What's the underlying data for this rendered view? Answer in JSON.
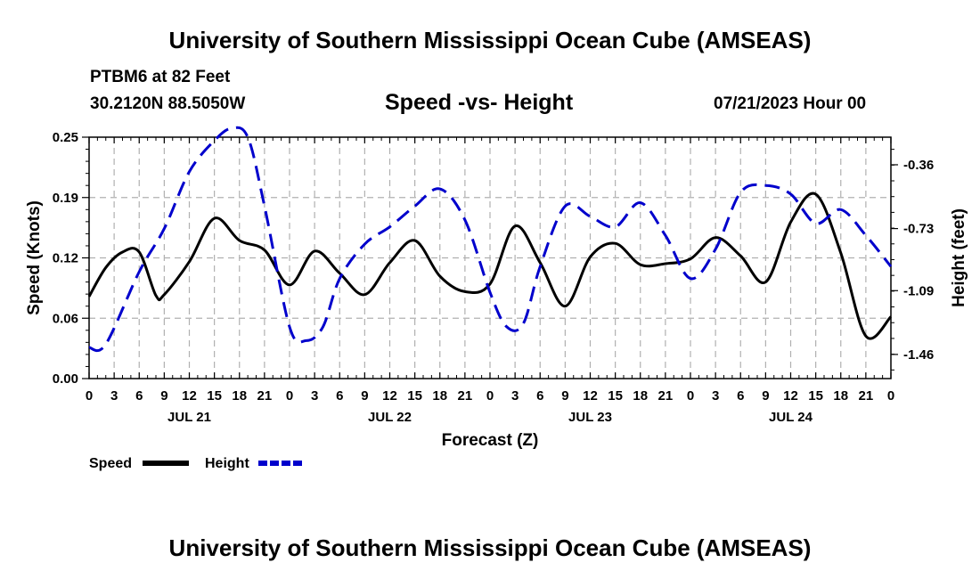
{
  "header": {
    "title_top": "University of Southern Mississippi Ocean Cube (AMSEAS)",
    "title_bottom": "University of Southern Mississippi Ocean Cube (AMSEAS)",
    "station": "PTBM6 at 82 Feet",
    "coords": "30.2120N  88.5050W",
    "datetime": "07/21/2023 Hour 00"
  },
  "chart_data": {
    "type": "line",
    "title": "Speed -vs- Height",
    "xlabel": "Forecast (Z)",
    "ylabel": "Speed (Knots)",
    "y2label": "Height (feet)",
    "x_hours_range": [
      0,
      96
    ],
    "x_tick_every_hours": 3,
    "x_tick_labels": [
      "0",
      "3",
      "6",
      "9",
      "12",
      "15",
      "18",
      "21",
      "0",
      "3",
      "6",
      "9",
      "12",
      "15",
      "18",
      "21",
      "0",
      "3",
      "6",
      "9",
      "12",
      "15",
      "18",
      "21",
      "0",
      "3",
      "6",
      "9",
      "12",
      "15",
      "18",
      "21",
      "0"
    ],
    "day_labels": [
      {
        "label": "JUL 21",
        "hour": 12
      },
      {
        "label": "JUL 22",
        "hour": 36
      },
      {
        "label": "JUL 23",
        "hour": 60
      },
      {
        "label": "JUL 24",
        "hour": 84
      }
    ],
    "ylim": [
      0,
      0.25
    ],
    "y_ticks": [
      "0.00",
      "0.06",
      "0.12",
      "0.19",
      "0.25"
    ],
    "y2lim": [
      -1.6,
      -0.2
    ],
    "y2_ticks": [
      "-1.46",
      "-1.09",
      "-0.73",
      "-0.36"
    ],
    "series": [
      {
        "name": "Speed",
        "axis": "left",
        "color": "#000000",
        "dash": "solid",
        "x": [
          0,
          2,
          4,
          6,
          8,
          9,
          12,
          15,
          18,
          21,
          24,
          27,
          30,
          33,
          36,
          39,
          42,
          45,
          48,
          51,
          54,
          57,
          60,
          63,
          66,
          69,
          72,
          75,
          78,
          81,
          84,
          87,
          90,
          93,
          96
        ],
        "y": [
          0.085,
          0.115,
          0.131,
          0.131,
          0.086,
          0.087,
          0.121,
          0.166,
          0.143,
          0.133,
          0.097,
          0.132,
          0.109,
          0.087,
          0.12,
          0.143,
          0.106,
          0.09,
          0.098,
          0.158,
          0.12,
          0.075,
          0.126,
          0.14,
          0.118,
          0.119,
          0.124,
          0.146,
          0.127,
          0.1,
          0.162,
          0.191,
          0.13,
          0.044,
          0.064
        ]
      },
      {
        "name": "Height",
        "axis": "right",
        "color": "#0000cc",
        "dash": "dashed",
        "x": [
          0,
          2,
          6,
          9,
          12,
          15,
          17,
          19,
          21,
          24,
          26,
          28,
          30,
          33,
          36,
          39,
          42,
          45,
          48,
          50,
          52,
          54,
          57,
          60,
          63,
          66,
          69,
          72,
          75,
          78,
          81,
          84,
          87,
          90,
          93,
          96
        ],
        "y": [
          -1.42,
          -1.4,
          -0.98,
          -0.73,
          -0.4,
          -0.22,
          -0.15,
          -0.2,
          -0.6,
          -1.3,
          -1.38,
          -1.3,
          -1.02,
          -0.82,
          -0.72,
          -0.6,
          -0.5,
          -0.68,
          -1.1,
          -1.3,
          -1.28,
          -0.95,
          -0.6,
          -0.66,
          -0.72,
          -0.58,
          -0.77,
          -1.02,
          -0.85,
          -0.52,
          -0.48,
          -0.53,
          -0.7,
          -0.62,
          -0.77,
          -0.95
        ]
      }
    ],
    "legend": [
      {
        "label": "Speed",
        "color": "#000000",
        "dash": "solid"
      },
      {
        "label": "Height",
        "color": "#0000cc",
        "dash": "dashed"
      }
    ]
  }
}
